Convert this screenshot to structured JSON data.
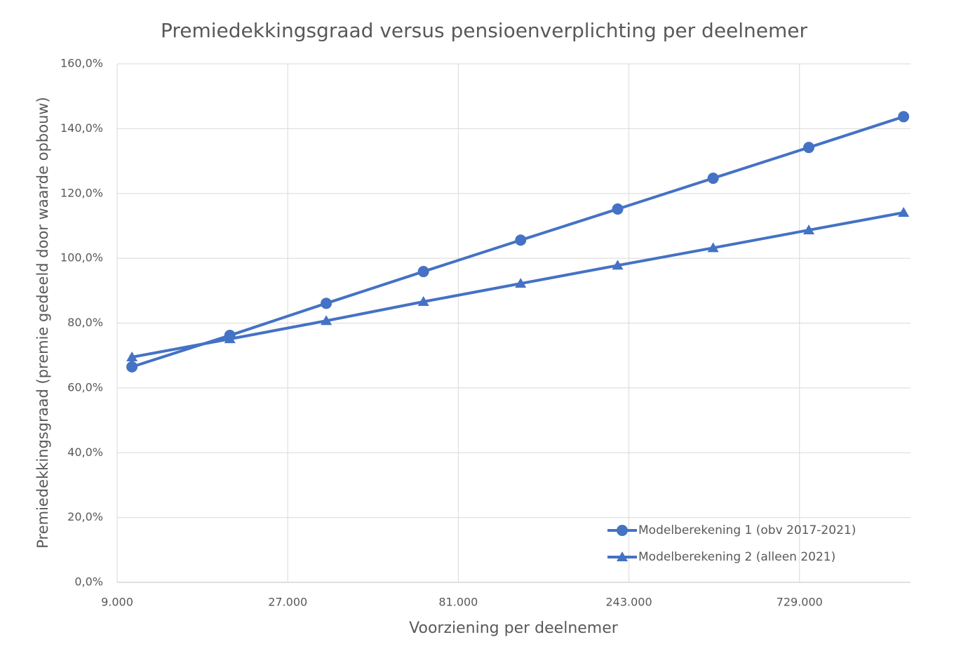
{
  "chart_data": {
    "type": "line",
    "title": "Premiedekkingsgraad versus pensioenverplichting per deelnemer",
    "x_label": "Voorziening per deelnemer",
    "y_label": "Premiedekkingsgraad (premie gedeeld door waarde opbouw)",
    "x": [
      9900,
      18600,
      34600,
      64700,
      121000,
      226000,
      418000,
      774000,
      1425000
    ],
    "series": [
      {
        "name": "Modelberekening 1 (obv 2017-2021)",
        "color": "#4472c4",
        "marker": "circle",
        "values": [
          66.5,
          76.2,
          86.1,
          95.9,
          105.6,
          115.2,
          124.7,
          134.2,
          143.7
        ]
      },
      {
        "name": "Modelberekening 2 (alleen 2021)",
        "color": "#4472c4",
        "marker": "triangle",
        "values": [
          69.5,
          75.1,
          80.7,
          86.6,
          92.2,
          97.8,
          103.2,
          108.7,
          114.1
        ]
      }
    ],
    "xscale": "log",
    "xlim": [
      9000,
      1490000
    ],
    "xticks": [
      {
        "value": 9000,
        "label": "9.000"
      },
      {
        "value": 27000,
        "label": "27.000"
      },
      {
        "value": 81000,
        "label": "81.000"
      },
      {
        "value": 243000,
        "label": "243.000"
      },
      {
        "value": 729000,
        "label": "729.000"
      }
    ],
    "ylim": [
      0,
      160
    ],
    "yticks": [
      {
        "value": 0,
        "label": "0,0%"
      },
      {
        "value": 20,
        "label": "20,0%"
      },
      {
        "value": 40,
        "label": "40,0%"
      },
      {
        "value": 60,
        "label": "60,0%"
      },
      {
        "value": 80,
        "label": "80,0%"
      },
      {
        "value": 100,
        "label": "100,0%"
      },
      {
        "value": 120,
        "label": "120,0%"
      },
      {
        "value": 140,
        "label": "140,0%"
      },
      {
        "value": 160,
        "label": "160,0%"
      }
    ],
    "grid": true,
    "legend": "lower right"
  }
}
